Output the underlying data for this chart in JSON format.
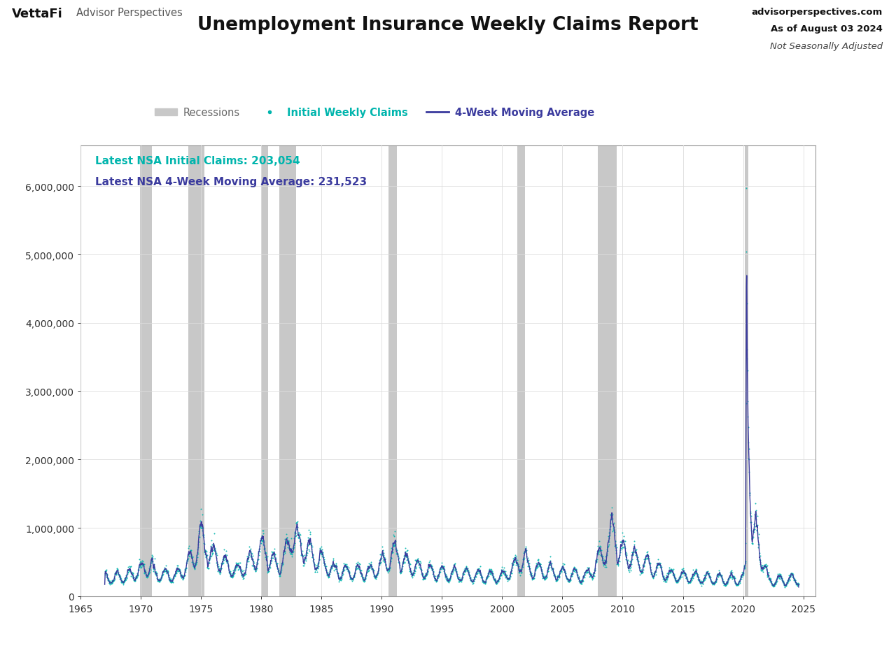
{
  "title": "Unemployment Insurance Weekly Claims Report",
  "subtitle_site": "advisorperspectives.com",
  "subtitle_date": "As of August 03 2024",
  "subtitle_adj": "Not Seasonally Adjusted",
  "logo_text": "VettaFi",
  "logo_sub": "Advisor Perspectives",
  "legend_recession": "Recessions",
  "legend_claims": "Initial Weekly Claims",
  "legend_ma": "4-Week Moving Average",
  "annotation1": "Latest NSA Initial Claims: 203,054",
  "annotation2": "Latest NSA 4-Week Moving Average: 231,523",
  "annotation1_color": "#00B5AD",
  "annotation2_color": "#3B3B9E",
  "claims_color": "#00B5AD",
  "ma_color": "#3B3B9E",
  "recession_color": "#C8C8C8",
  "background_color": "#FFFFFF",
  "grid_color": "#DDDDDD",
  "ylim": [
    0,
    6600000
  ],
  "yticks": [
    0,
    1000000,
    2000000,
    3000000,
    4000000,
    5000000,
    6000000
  ],
  "xlim_start": 1965,
  "xlim_end": 2026,
  "xticks": [
    1965,
    1970,
    1975,
    1980,
    1985,
    1990,
    1995,
    2000,
    2005,
    2010,
    2015,
    2020,
    2025
  ],
  "recession_periods": [
    [
      1969.917,
      1970.917
    ],
    [
      1973.917,
      1975.25
    ],
    [
      1980.0,
      1980.583
    ],
    [
      1981.5,
      1982.917
    ],
    [
      1990.583,
      1991.25
    ],
    [
      2001.25,
      2001.917
    ],
    [
      2007.917,
      2009.5
    ],
    [
      2020.167,
      2020.417
    ]
  ]
}
